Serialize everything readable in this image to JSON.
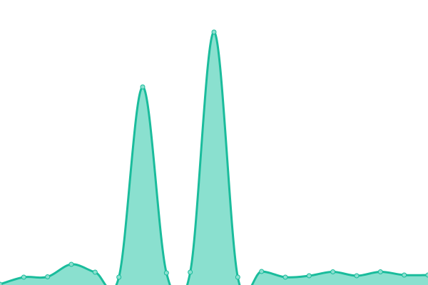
{
  "chart_data": {
    "type": "area",
    "title": "",
    "xlabel": "",
    "ylabel": "",
    "x": [
      0,
      1,
      2,
      3,
      4,
      5,
      6,
      7,
      8,
      9,
      10,
      11,
      12,
      13,
      14,
      15,
      16,
      17,
      18
    ],
    "values": [
      1,
      11,
      11.5,
      29,
      18,
      11,
      278,
      17,
      18,
      355,
      11,
      19,
      11,
      13,
      18.5,
      13,
      18.5,
      14,
      14
    ],
    "ylim": [
      0,
      400
    ],
    "xlim": [
      0,
      18
    ],
    "grid": false,
    "axes_visible": false,
    "curve": "smooth",
    "colors": {
      "line": "#1abc9c",
      "fill": "#8ae0cf",
      "point_fill": "#8ae0cf",
      "point_stroke": "#1abc9c"
    }
  }
}
